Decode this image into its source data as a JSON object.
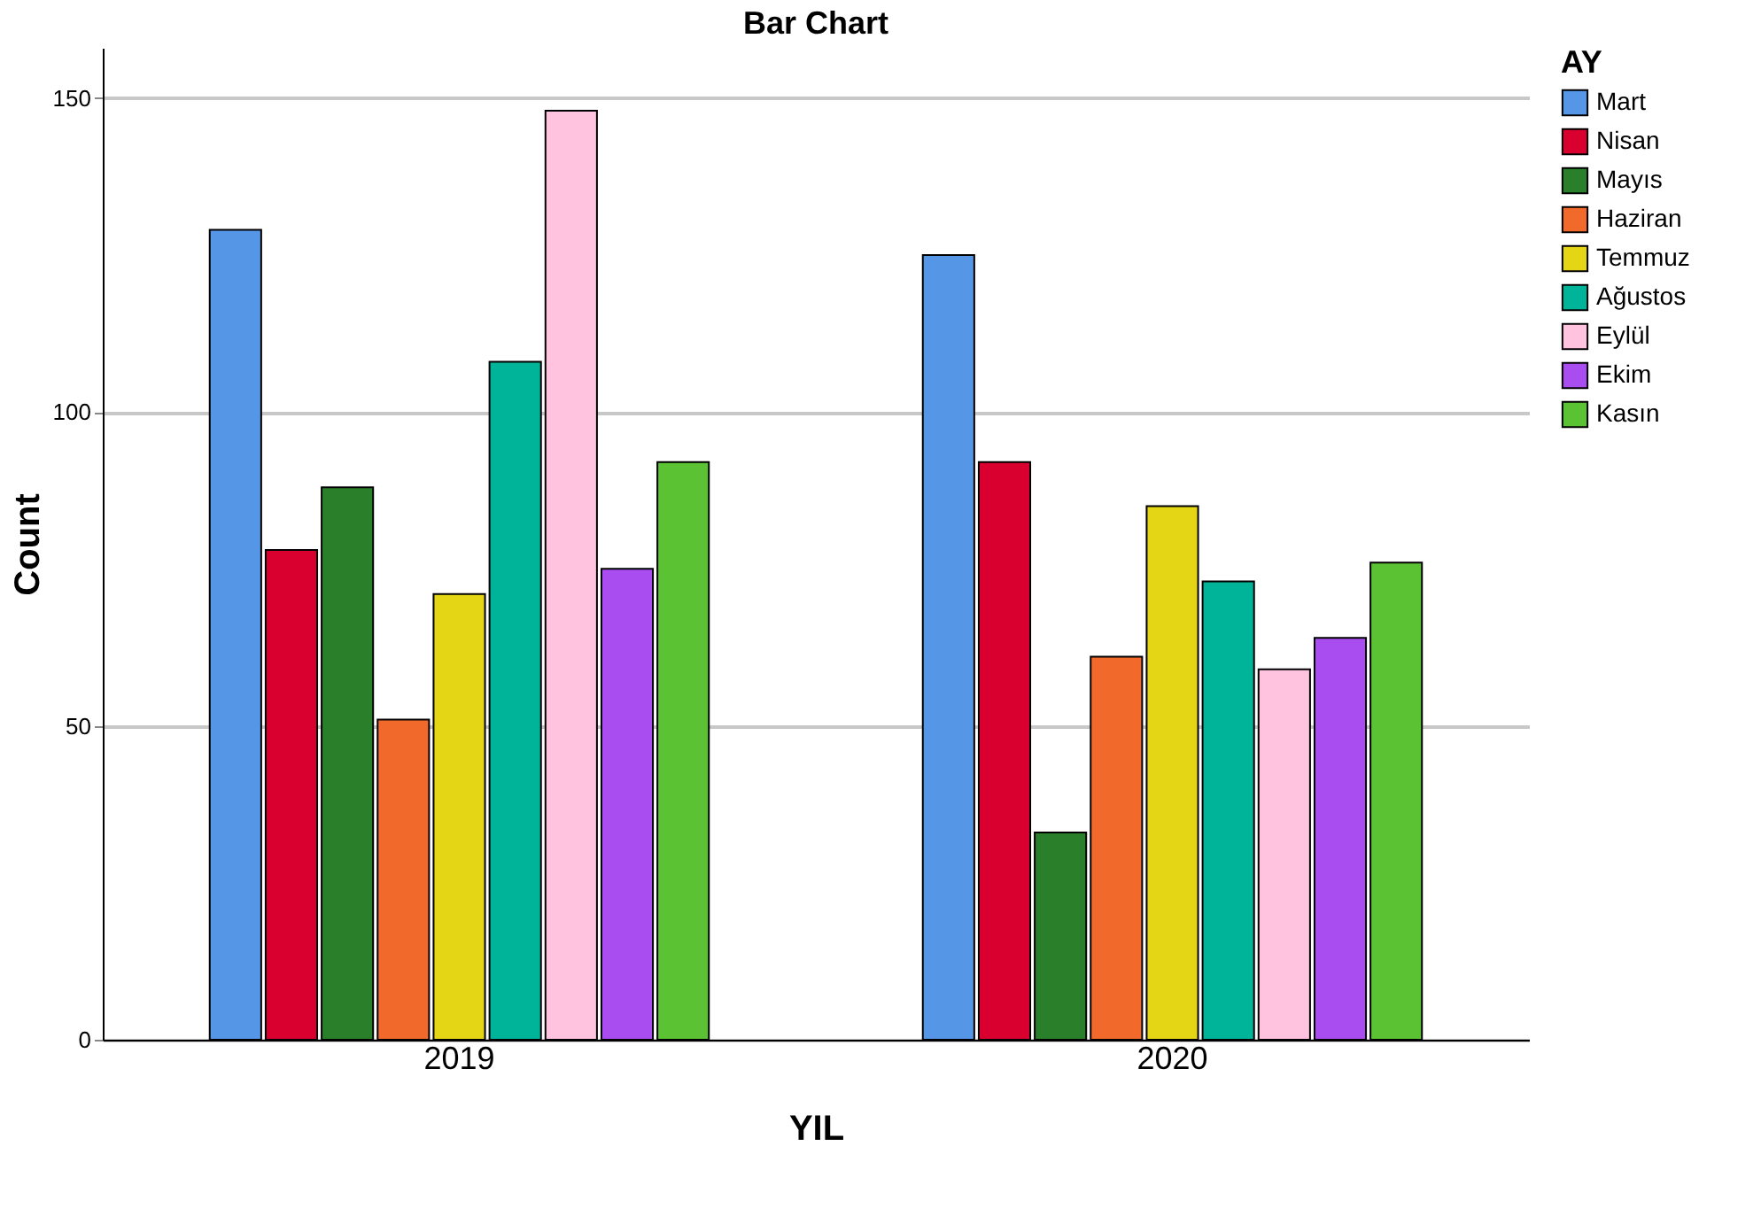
{
  "chart_data": {
    "type": "bar",
    "title": "Bar Chart",
    "xlabel": "YIL",
    "ylabel": "Count",
    "legend_title": "AY",
    "categories": [
      "2019",
      "2020"
    ],
    "series": [
      {
        "name": "Mart",
        "color": "#5596e6",
        "values": [
          129,
          125
        ]
      },
      {
        "name": "Nisan",
        "color": "#d90030",
        "values": [
          78,
          92
        ]
      },
      {
        "name": "Mayıs",
        "color": "#2a7f2a",
        "values": [
          88,
          33
        ]
      },
      {
        "name": "Haziran",
        "color": "#f26a2b",
        "values": [
          51,
          61
        ]
      },
      {
        "name": "Temmuz",
        "color": "#e4d614",
        "values": [
          71,
          85
        ]
      },
      {
        "name": "Ağustos",
        "color": "#00b49a",
        "values": [
          108,
          73
        ]
      },
      {
        "name": "Eylül",
        "color": "#ffc3df",
        "values": [
          148,
          59
        ]
      },
      {
        "name": "Ekim",
        "color": "#a94df0",
        "values": [
          75,
          64
        ]
      },
      {
        "name": "Kasın",
        "color": "#5bc234",
        "values": [
          92,
          76
        ]
      }
    ],
    "ylim": [
      0,
      158
    ],
    "yticks": [
      0,
      50,
      100,
      150
    ],
    "grid": "y",
    "legend": "top right"
  }
}
